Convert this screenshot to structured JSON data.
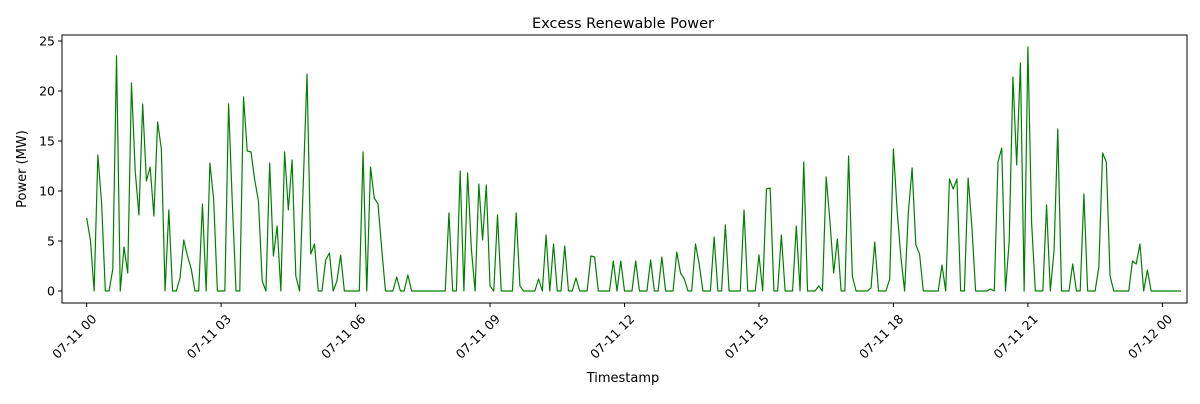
{
  "chart_data": {
    "type": "line",
    "title": "Excess Renewable Power",
    "xlabel": "Timestamp",
    "ylabel": "Power (MW)",
    "xlim": [
      "07-10 23:27",
      "07-12 00:33"
    ],
    "ylim": [
      -1.2,
      25.6
    ],
    "grid": false,
    "legend": "none",
    "x_ticks": [
      "07-11 00",
      "07-11 03",
      "07-11 06",
      "07-11 09",
      "07-11 12",
      "07-11 15",
      "07-11 18",
      "07-11 21",
      "07-12 00"
    ],
    "y_ticks": [
      0,
      5,
      10,
      15,
      20,
      25
    ],
    "series": [
      {
        "color": "#008000",
        "x_start": "07-11 00:00",
        "interval_minutes": 5,
        "values": [
          7.3,
          5.1,
          0.0,
          13.6,
          8.8,
          0.0,
          0.0,
          2.2,
          23.5,
          0.0,
          4.4,
          1.8,
          20.8,
          12.0,
          7.6,
          18.7,
          11.0,
          12.4,
          7.5,
          16.9,
          14.2,
          0.0,
          8.1,
          0.0,
          0.0,
          1.3,
          5.1,
          3.5,
          2.2,
          0.0,
          0.0,
          8.7,
          0.0,
          12.8,
          9.2,
          0.0,
          0.0,
          0.0,
          18.7,
          8.8,
          0.0,
          0.0,
          19.4,
          14.0,
          13.9,
          11.1,
          9.0,
          1.0,
          0.0,
          12.8,
          3.5,
          6.5,
          0.0,
          13.9,
          8.1,
          13.1,
          1.5,
          0.0,
          10.8,
          21.7,
          3.7,
          4.7,
          0.0,
          0.0,
          3.1,
          3.8,
          0.0,
          1.0,
          3.6,
          0.0,
          0.0,
          0.0,
          0.0,
          0.0,
          13.9,
          0.0,
          12.4,
          9.3,
          8.7,
          4.2,
          0.0,
          0.0,
          0.0,
          1.4,
          0.0,
          0.0,
          1.6,
          0.0,
          0.0,
          0.0,
          0.0,
          0.0,
          0.0,
          0.0,
          0.0,
          0.0,
          0.0,
          7.8,
          0.0,
          0.0,
          12.0,
          0.0,
          11.8,
          4.2,
          0.0,
          10.7,
          5.1,
          10.6,
          0.5,
          0.0,
          7.6,
          0.0,
          0.0,
          0.0,
          0.0,
          7.8,
          0.5,
          0.0,
          0.0,
          0.0,
          0.0,
          1.2,
          0.0,
          5.6,
          0.0,
          4.7,
          0.0,
          0.0,
          4.5,
          0.0,
          0.0,
          1.3,
          0.0,
          0.0,
          0.0,
          3.5,
          3.4,
          0.0,
          0.0,
          0.0,
          0.0,
          3.0,
          0.0,
          3.0,
          0.0,
          0.0,
          0.0,
          3.0,
          0.0,
          0.0,
          0.0,
          3.1,
          0.0,
          0.0,
          3.4,
          0.0,
          0.0,
          0.0,
          3.9,
          1.8,
          1.2,
          0.0,
          0.0,
          4.7,
          2.7,
          0.0,
          0.0,
          0.0,
          5.4,
          0.0,
          0.0,
          6.6,
          0.0,
          0.0,
          0.0,
          0.0,
          8.1,
          0.0,
          0.0,
          0.0,
          3.6,
          0.0,
          10.2,
          10.3,
          0.0,
          0.0,
          5.6,
          0.0,
          0.0,
          0.0,
          6.5,
          0.0,
          12.9,
          0.0,
          0.0,
          0.0,
          0.5,
          0.0,
          11.4,
          7.0,
          1.8,
          5.2,
          0.0,
          0.0,
          13.5,
          1.5,
          0.0,
          0.0,
          0.0,
          0.0,
          0.3,
          4.9,
          0.0,
          0.0,
          0.0,
          1.2,
          14.2,
          8.0,
          3.4,
          0.0,
          7.9,
          12.3,
          4.6,
          3.7,
          0.0,
          0.0,
          0.0,
          0.0,
          0.0,
          2.6,
          0.0,
          11.2,
          10.2,
          11.2,
          0.0,
          0.0,
          11.3,
          6.5,
          0.0,
          0.0,
          0.0,
          0.0,
          0.2,
          0.0,
          12.9,
          14.3,
          0.0,
          5.0,
          21.4,
          12.6,
          22.8,
          0.0,
          24.4,
          6.8,
          0.0,
          0.0,
          0.0,
          8.6,
          0.0,
          4.0,
          16.2,
          0.0,
          0.0,
          0.0,
          2.7,
          0.0,
          0.0,
          9.7,
          0.0,
          0.0,
          0.0,
          2.4,
          13.8,
          12.9,
          1.5,
          0.0,
          0.0,
          0.0,
          0.0,
          0.0,
          3.0,
          2.7,
          4.7,
          0.0,
          2.1,
          0.0,
          0.0,
          0.0,
          0.0,
          0.0,
          0.0,
          0.0,
          0.0,
          0.0
        ]
      }
    ]
  }
}
